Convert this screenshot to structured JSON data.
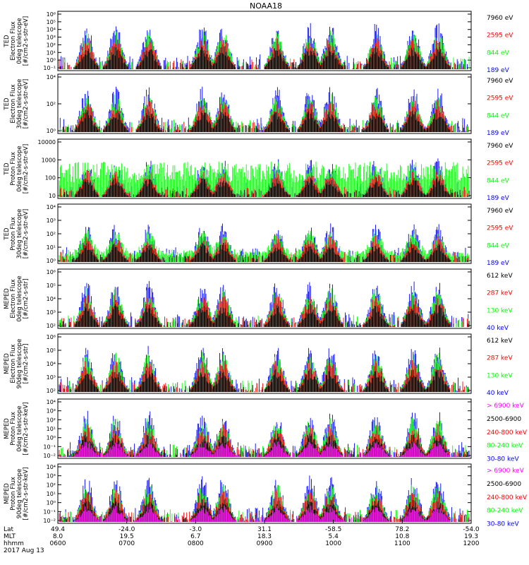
{
  "title": "NOAA18",
  "colors": {
    "black": "#000000",
    "red": "#ff0000",
    "green": "#00ff00",
    "blue": "#0000ff",
    "magenta": "#ff00ff"
  },
  "chart_data": [
    {
      "type": "line",
      "instrument": "TED",
      "ylabel": [
        "TED",
        "Electron Flux",
        "0deg telescope",
        "[#/cm2-s-str-eV]"
      ],
      "scale": "log",
      "yticks": [
        "10^-1",
        "10^0",
        "10^1",
        "10^2",
        "10^3",
        "10^4",
        "10^5",
        "10^6"
      ],
      "series": [
        {
          "name": "7960 eV",
          "color": "#000000"
        },
        {
          "name": "2595 eV",
          "color": "#ff0000"
        },
        {
          "name": "844 eV",
          "color": "#00ff00"
        },
        {
          "name": "189 eV",
          "color": "#0000ff"
        }
      ]
    },
    {
      "type": "line",
      "instrument": "TED",
      "ylabel": [
        "TED",
        "Electron Flux",
        "30deg telescope",
        "[#/cm2-s-str-eV]"
      ],
      "scale": "log",
      "yticks": [
        "10^0",
        "10^2",
        "10^4"
      ],
      "series": [
        {
          "name": "7960 eV",
          "color": "#000000"
        },
        {
          "name": "2595 eV",
          "color": "#ff0000"
        },
        {
          "name": "844 eV",
          "color": "#00ff00"
        },
        {
          "name": "189 eV",
          "color": "#0000ff"
        }
      ]
    },
    {
      "type": "line",
      "instrument": "TED",
      "ylabel": [
        "TED",
        "Proton Flux",
        "0deg telescope",
        "[#/cm2-s-str-eV]"
      ],
      "scale": "log",
      "yticks": [
        "10",
        "100",
        "1000",
        "10000"
      ],
      "series": [
        {
          "name": "7960 eV",
          "color": "#000000"
        },
        {
          "name": "2595 eV",
          "color": "#ff0000"
        },
        {
          "name": "844 eV",
          "color": "#00ff00"
        },
        {
          "name": "189 eV",
          "color": "#0000ff"
        }
      ]
    },
    {
      "type": "line",
      "instrument": "TED",
      "ylabel": [
        "TED",
        "Proton Flux",
        "30deg telescope",
        "[#/cm2-s-str-eV]"
      ],
      "scale": "log",
      "yticks": [
        "10^0",
        "10^1",
        "10^2",
        "10^3",
        "10^4"
      ],
      "series": [
        {
          "name": "7960 eV",
          "color": "#000000"
        },
        {
          "name": "2595 eV",
          "color": "#ff0000"
        },
        {
          "name": "844 eV",
          "color": "#00ff00"
        },
        {
          "name": "189 eV",
          "color": "#0000ff"
        }
      ]
    },
    {
      "type": "line",
      "instrument": "MEPED",
      "ylabel": [
        "MEPED",
        "Electron Flux",
        "0deg telescope",
        "[#/cm2-s-str]"
      ],
      "scale": "log",
      "yticks": [
        "10^2",
        "10^3",
        "10^4",
        "10^5",
        "10^6"
      ],
      "series": [
        {
          "name": "612 keV",
          "color": "#000000"
        },
        {
          "name": "287 keV",
          "color": "#ff0000"
        },
        {
          "name": "130 keV",
          "color": "#00ff00"
        },
        {
          "name": "40 keV",
          "color": "#0000ff"
        }
      ]
    },
    {
      "type": "line",
      "instrument": "MEPED",
      "ylabel": [
        "MEPED",
        "Electron Flux",
        "90deg telescope",
        "[#/cm2-s-str]"
      ],
      "scale": "log",
      "yticks": [
        "10^2",
        "10^3",
        "10^4",
        "10^5",
        "10^6"
      ],
      "series": [
        {
          "name": "612 keV",
          "color": "#000000"
        },
        {
          "name": "287 keV",
          "color": "#ff0000"
        },
        {
          "name": "130 keV",
          "color": "#00ff00"
        },
        {
          "name": "40 keV",
          "color": "#0000ff"
        }
      ]
    },
    {
      "type": "line",
      "instrument": "MEPED",
      "ylabel": [
        "MEPED",
        "Proton Flux",
        "0deg telescope",
        "[#/cm2-s-str-keV]"
      ],
      "scale": "log",
      "yticks": [
        "10^-2",
        "10^-1",
        "10^0",
        "10^1",
        "10^2",
        "10^3",
        "10^4"
      ],
      "series": [
        {
          "name": "> 6900 keV",
          "color": "#ff00ff"
        },
        {
          "name": "2500-6900",
          "color": "#000000"
        },
        {
          "name": "240-800 keV",
          "color": "#ff0000"
        },
        {
          "name": "80-240 keV",
          "color": "#00ff00"
        },
        {
          "name": "30-80 keV",
          "color": "#0000ff"
        }
      ]
    },
    {
      "type": "line",
      "instrument": "MEPED",
      "ylabel": [
        "MEPED",
        "Proton Flux",
        "90deg telescope",
        "[#/cm2-s-str-keV]"
      ],
      "scale": "log",
      "yticks": [
        "10^-2",
        "10^-1",
        "10^0",
        "10^1",
        "10^2",
        "10^3",
        "10^4"
      ],
      "series": [
        {
          "name": "> 6900 keV",
          "color": "#ff00ff"
        },
        {
          "name": "2500-6900",
          "color": "#000000"
        },
        {
          "name": "240-800 keV",
          "color": "#ff0000"
        },
        {
          "name": "80-240 keV",
          "color": "#00ff00"
        },
        {
          "name": "30-80 keV",
          "color": "#0000ff"
        }
      ]
    }
  ],
  "xaxis": {
    "row_labels": [
      "Lat",
      "MLT",
      "hhmm",
      "2017 Aug 13"
    ],
    "ticks": [
      {
        "lat": "49.4",
        "mlt": "8.0",
        "hhmm": "0600"
      },
      {
        "lat": "-24.0",
        "mlt": "19.5",
        "hhmm": "0700"
      },
      {
        "lat": "-3.0",
        "mlt": "6.7",
        "hhmm": "0800"
      },
      {
        "lat": "31.1",
        "mlt": "18.3",
        "hhmm": "0900"
      },
      {
        "lat": "-58.5",
        "mlt": "5.4",
        "hhmm": "1000"
      },
      {
        "lat": "78.2",
        "mlt": "10.8",
        "hhmm": "1100"
      },
      {
        "lat": "-54.0",
        "mlt": "19.3",
        "hhmm": "1200"
      }
    ]
  }
}
